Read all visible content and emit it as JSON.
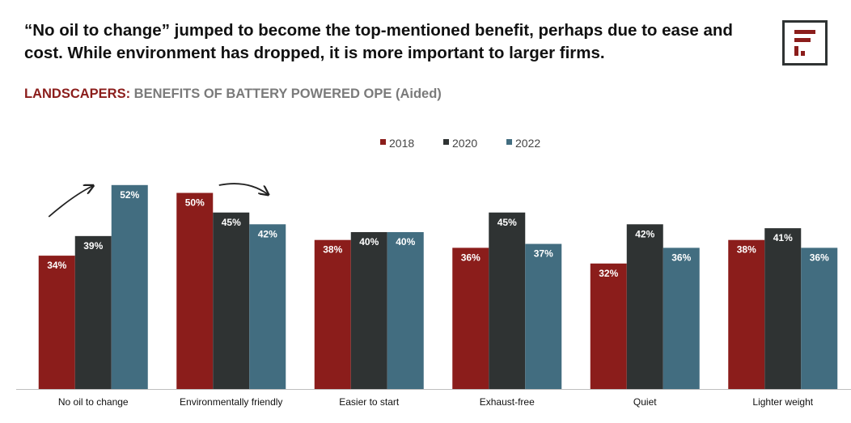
{
  "headline": "“No oil to change” jumped to become the top-mentioned benefit, perhaps due to ease and cost.  While environment has dropped, it is more important to larger firms.",
  "subtitle": {
    "prefix": "LANDSCAPERS:",
    "text": " BENEFITS OF BATTERY POWERED OPE (Aided)"
  },
  "logo_icon": "stylized-f-logo-icon",
  "colors": {
    "s2018": "#8b1d1b",
    "s2020": "#2f3333",
    "s2022": "#426d80",
    "accent": "#8b1d1b",
    "subtitle_gray": "#7a7a7a"
  },
  "chart_data": {
    "type": "bar",
    "categories": [
      "No oil to change",
      "Environmentally friendly",
      "Easier to start",
      "Exhaust-free",
      "Quiet",
      "Lighter weight"
    ],
    "series": [
      {
        "name": "2018",
        "values": [
          34,
          50,
          38,
          36,
          32,
          38
        ],
        "labels": [
          "34%",
          "50%",
          "38%",
          "36%",
          "32%",
          "38%"
        ]
      },
      {
        "name": "2020",
        "values": [
          39,
          45,
          40,
          45,
          42,
          41
        ],
        "labels": [
          "39%",
          "45%",
          "40%",
          "45%",
          "42%",
          "41%"
        ]
      },
      {
        "name": "2022",
        "values": [
          52,
          42,
          40,
          37,
          36,
          36
        ],
        "labels": [
          "52%",
          "42%",
          "40%",
          "37%",
          "36%",
          "36%"
        ]
      }
    ],
    "ylim": [
      0,
      100
    ],
    "legend_position": "top-center",
    "grid": false,
    "annotations": [
      {
        "type": "arrow-up",
        "category": "No oil to change"
      },
      {
        "type": "arrow-down",
        "category": "Environmentally friendly"
      }
    ]
  }
}
